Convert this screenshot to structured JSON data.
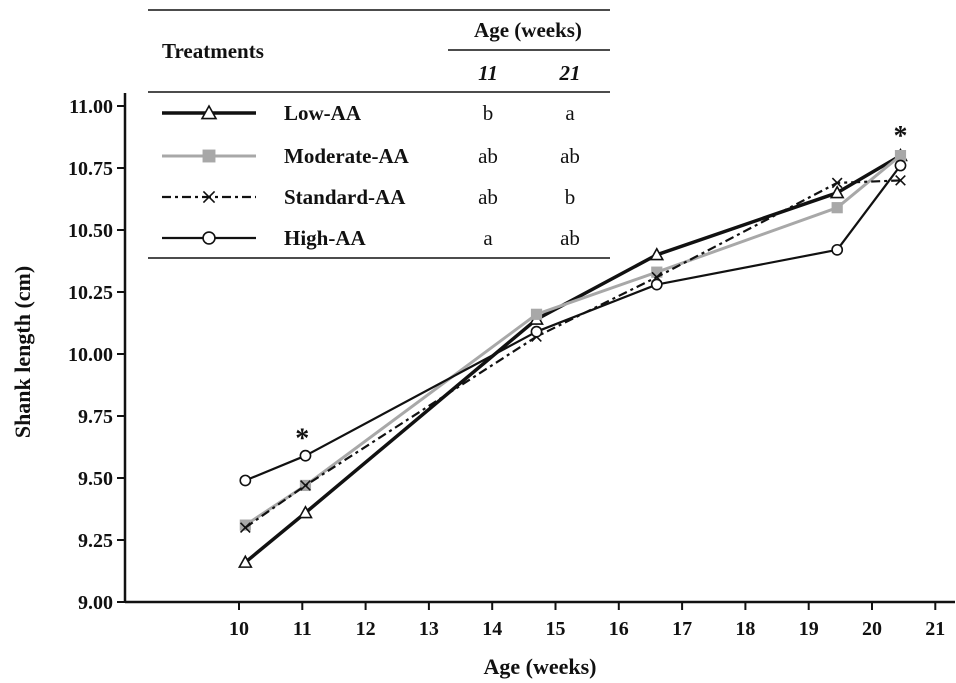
{
  "chart_data": {
    "type": "line",
    "xlabel": "Age (weeks)",
    "ylabel": "Shank length (cm)",
    "xlim": [
      9,
      21.3
    ],
    "ylim": [
      9.0,
      11.0
    ],
    "x_ticks": [
      10,
      11,
      12,
      13,
      14,
      15,
      16,
      17,
      18,
      19,
      20,
      21
    ],
    "x_tick_labels": [
      "10",
      "11",
      "12",
      "13",
      "14",
      "15",
      "16",
      "17",
      "18",
      "19",
      "20",
      "21"
    ],
    "y_ticks": [
      9.0,
      9.25,
      9.5,
      9.75,
      10.0,
      10.25,
      10.5,
      10.75,
      11.0
    ],
    "y_tick_labels": [
      "9.00",
      "9.25",
      "9.50",
      "9.75",
      "10.00",
      "10.25",
      "10.50",
      "10.75",
      "11.00"
    ],
    "grid": false,
    "series": [
      {
        "name": "Low-AA",
        "marker": "triangle",
        "color": "#111111",
        "line_style": "solid",
        "x": [
          10.1,
          11.05,
          14.7,
          16.6,
          19.45,
          20.45
        ],
        "y": [
          9.16,
          9.36,
          10.14,
          10.4,
          10.65,
          10.8
        ]
      },
      {
        "name": "Moderate-AA",
        "marker": "square",
        "color": "#a8a8a8",
        "line_style": "solid",
        "x": [
          10.1,
          11.05,
          14.7,
          16.6,
          19.45,
          20.45
        ],
        "y": [
          9.31,
          9.47,
          10.16,
          10.33,
          10.59,
          10.8
        ]
      },
      {
        "name": "Standard-AA",
        "marker": "x",
        "color": "#111111",
        "line_style": "dashdot",
        "x": [
          10.1,
          11.05,
          14.7,
          16.6,
          19.45,
          20.45
        ],
        "y": [
          9.3,
          9.47,
          10.07,
          10.31,
          10.69,
          10.7
        ]
      },
      {
        "name": "High-AA",
        "marker": "circle",
        "color": "#111111",
        "line_style": "solid",
        "x": [
          10.1,
          11.05,
          14.7,
          16.6,
          19.45,
          20.45
        ],
        "y": [
          9.49,
          9.59,
          10.09,
          10.28,
          10.42,
          10.76
        ]
      }
    ],
    "annotations": [
      {
        "text": "*",
        "x": 11.0,
        "y": 9.68
      },
      {
        "text": "*",
        "x": 20.45,
        "y": 10.9
      }
    ],
    "legend_table": {
      "placement": "top-left",
      "treatments_header": "Treatments",
      "age_header": "Age (weeks)",
      "age_columns": [
        "11",
        "21"
      ],
      "rows": [
        {
          "name": "Low-AA",
          "values": [
            "b",
            "a"
          ]
        },
        {
          "name": "Moderate-AA",
          "values": [
            "ab",
            "ab"
          ]
        },
        {
          "name": "Standard-AA",
          "values": [
            "ab",
            "b"
          ]
        },
        {
          "name": "High-AA",
          "values": [
            "a",
            "ab"
          ]
        }
      ]
    }
  }
}
